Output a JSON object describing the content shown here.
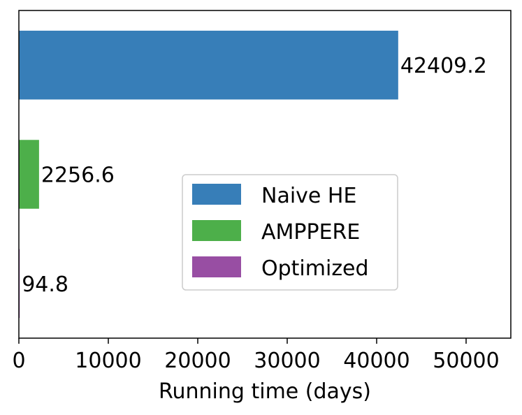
{
  "chart_data": {
    "type": "bar",
    "orientation": "horizontal",
    "categories": [
      "Naive HE",
      "AMPPERE",
      "Optimized"
    ],
    "values": [
      42409.2,
      2256.6,
      94.8
    ],
    "value_labels": [
      "42409.2",
      "2256.6",
      "94.8"
    ],
    "colors": [
      "#377eb8",
      "#4daf4a",
      "#984ea3"
    ],
    "xlabel": "Running time (days)",
    "ylabel": "",
    "title": "",
    "xlim": [
      0,
      55000
    ],
    "xticks": [
      0,
      10000,
      20000,
      30000,
      40000,
      50000
    ],
    "xtick_labels": [
      "0",
      "10000",
      "20000",
      "30000",
      "40000",
      "50000"
    ],
    "legend": {
      "placement": "center-right",
      "entries": [
        {
          "label": "Naive HE",
          "color": "#377eb8"
        },
        {
          "label": "AMPPERE",
          "color": "#4daf4a"
        },
        {
          "label": "Optimized",
          "color": "#984ea3"
        }
      ]
    },
    "grid": false
  }
}
